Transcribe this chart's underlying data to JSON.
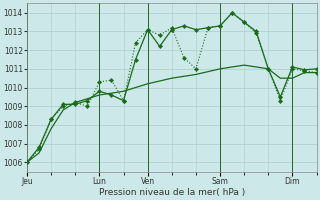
{
  "background_color": "#cce8e8",
  "grid_color": "#aacccc",
  "line_color": "#1a6b1a",
  "xlabel": "Pression niveau de la mer( hPa )",
  "ylim": [
    1005.5,
    1014.5
  ],
  "yticks": [
    1006,
    1007,
    1008,
    1009,
    1010,
    1011,
    1012,
    1013,
    1014
  ],
  "xtick_labels": [
    "Jeu",
    "Lun",
    "Ven",
    "Sam",
    "Dim"
  ],
  "xtick_positions": [
    0,
    72,
    120,
    192,
    264
  ],
  "vline_positions": [
    0,
    72,
    120,
    192,
    264
  ],
  "total_hours": 288,
  "series1_dotted": {
    "x": [
      0,
      12,
      24,
      36,
      48,
      60,
      72,
      84,
      96,
      108,
      120,
      132,
      144,
      156,
      168,
      180,
      192,
      204,
      216,
      228,
      240,
      252,
      264,
      276,
      288
    ],
    "y": [
      1006.0,
      1006.7,
      1008.3,
      1009.0,
      1009.2,
      1009.0,
      1010.3,
      1010.4,
      1009.3,
      1012.4,
      1013.1,
      1012.8,
      1013.2,
      1011.6,
      1011.0,
      1013.2,
      1013.3,
      1014.0,
      1013.5,
      1012.9,
      1011.0,
      1009.3,
      1011.0,
      1010.9,
      1010.8
    ]
  },
  "series2_solid": {
    "x": [
      0,
      12,
      24,
      36,
      48,
      60,
      72,
      84,
      96,
      108,
      120,
      132,
      144,
      156,
      168,
      180,
      192,
      204,
      216,
      228,
      240,
      252,
      264,
      276,
      288
    ],
    "y": [
      1006.0,
      1006.8,
      1008.3,
      1009.1,
      1009.1,
      1009.3,
      1009.8,
      1009.6,
      1009.3,
      1011.5,
      1013.1,
      1012.2,
      1013.1,
      1013.3,
      1013.1,
      1013.2,
      1013.3,
      1014.0,
      1013.5,
      1013.0,
      1011.0,
      1009.5,
      1011.1,
      1010.95,
      1011.0
    ]
  },
  "series3_smooth": {
    "x": [
      0,
      12,
      24,
      36,
      48,
      60,
      72,
      84,
      96,
      108,
      120,
      132,
      144,
      156,
      168,
      180,
      192,
      204,
      216,
      228,
      240,
      252,
      264,
      276,
      288
    ],
    "y": [
      1006.0,
      1006.5,
      1007.8,
      1008.8,
      1009.2,
      1009.4,
      1009.6,
      1009.7,
      1009.8,
      1010.0,
      1010.2,
      1010.35,
      1010.5,
      1010.6,
      1010.7,
      1010.85,
      1011.0,
      1011.1,
      1011.2,
      1011.1,
      1011.0,
      1010.5,
      1010.5,
      1010.8,
      1010.8
    ]
  }
}
